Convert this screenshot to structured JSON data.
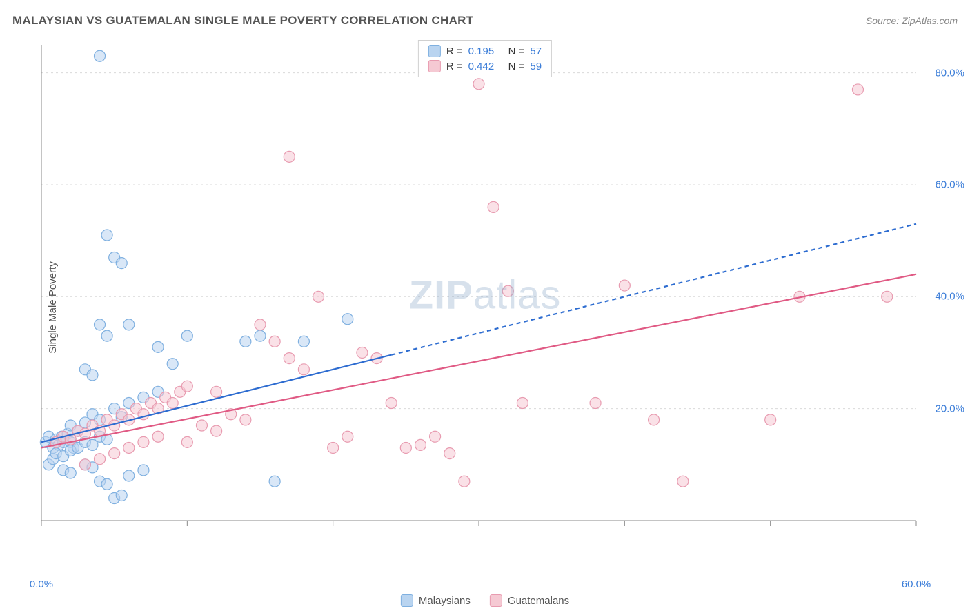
{
  "title": "MALAYSIAN VS GUATEMALAN SINGLE MALE POVERTY CORRELATION CHART",
  "source_label": "Source: ZipAtlas.com",
  "y_axis_label": "Single Male Poverty",
  "watermark": {
    "bold": "ZIP",
    "rest": "atlas"
  },
  "colors": {
    "series1_fill": "#b9d4f0",
    "series1_stroke": "#7fb0e0",
    "series2_fill": "#f5c9d3",
    "series2_stroke": "#e89bb0",
    "trend1": "#2d6cd0",
    "trend2": "#e05a84",
    "grid": "#d9d9d9",
    "axis": "#888888",
    "tick_text": "#3b7dd8",
    "background": "#ffffff"
  },
  "chart": {
    "type": "scatter",
    "xlim": [
      0,
      60
    ],
    "ylim": [
      0,
      85
    ],
    "x_ticks": [
      0,
      10,
      20,
      30,
      40,
      50,
      60
    ],
    "x_tick_labels": [
      "0.0%",
      "",
      "",
      "",
      "",
      "",
      "60.0%"
    ],
    "y_ticks": [
      20,
      40,
      60,
      80
    ],
    "y_tick_labels": [
      "20.0%",
      "40.0%",
      "60.0%",
      "80.0%"
    ],
    "marker_radius": 8,
    "marker_fill_opacity": 0.55,
    "line_width": 2.2,
    "grid_dash": "3,4",
    "series": [
      {
        "name": "Malaysians",
        "color_fill": "#b9d4f0",
        "color_stroke": "#7fb0e0",
        "R": "0.195",
        "N": "57",
        "trend": {
          "x1": 0,
          "y1": 14,
          "x2": 60,
          "y2": 53,
          "solid_until_x": 24,
          "color": "#2d6cd0"
        },
        "points": [
          [
            0.3,
            14
          ],
          [
            0.5,
            15
          ],
          [
            0.8,
            13
          ],
          [
            1,
            14.5
          ],
          [
            1.2,
            13.5
          ],
          [
            1.4,
            15
          ],
          [
            1.5,
            14
          ],
          [
            1.8,
            15.5
          ],
          [
            2,
            14
          ],
          [
            2.2,
            13
          ],
          [
            0.5,
            10
          ],
          [
            0.8,
            11
          ],
          [
            1,
            12
          ],
          [
            1.5,
            11.5
          ],
          [
            2,
            12.5
          ],
          [
            2.5,
            13
          ],
          [
            3,
            14
          ],
          [
            3.5,
            13.5
          ],
          [
            4,
            15
          ],
          [
            4.5,
            14.5
          ],
          [
            2,
            17
          ],
          [
            2.5,
            16
          ],
          [
            3,
            17.5
          ],
          [
            3.5,
            19
          ],
          [
            4,
            18
          ],
          [
            5,
            20
          ],
          [
            5.5,
            18.5
          ],
          [
            6,
            21
          ],
          [
            7,
            22
          ],
          [
            8,
            23
          ],
          [
            1.5,
            9
          ],
          [
            2,
            8.5
          ],
          [
            3,
            10
          ],
          [
            3.5,
            9.5
          ],
          [
            4,
            7
          ],
          [
            4.5,
            6.5
          ],
          [
            5,
            4
          ],
          [
            5.5,
            4.5
          ],
          [
            6,
            8
          ],
          [
            7,
            9
          ],
          [
            3,
            27
          ],
          [
            3.5,
            26
          ],
          [
            4,
            35
          ],
          [
            4.5,
            33
          ],
          [
            5,
            47
          ],
          [
            5.5,
            46
          ],
          [
            6,
            35
          ],
          [
            8,
            31
          ],
          [
            9,
            28
          ],
          [
            10,
            33
          ],
          [
            4,
            83
          ],
          [
            4.5,
            51
          ],
          [
            14,
            32
          ],
          [
            15,
            33
          ],
          [
            16,
            7
          ],
          [
            18,
            32
          ],
          [
            21,
            36
          ]
        ]
      },
      {
        "name": "Guatemalans",
        "color_fill": "#f5c9d3",
        "color_stroke": "#e89bb0",
        "R": "0.442",
        "N": "59",
        "trend": {
          "x1": 0,
          "y1": 13,
          "x2": 60,
          "y2": 44,
          "solid_until_x": 60,
          "color": "#e05a84"
        },
        "points": [
          [
            1,
            14
          ],
          [
            1.5,
            15
          ],
          [
            2,
            14.5
          ],
          [
            2.5,
            16
          ],
          [
            3,
            15.5
          ],
          [
            3.5,
            17
          ],
          [
            4,
            16
          ],
          [
            4.5,
            18
          ],
          [
            5,
            17
          ],
          [
            5.5,
            19
          ],
          [
            6,
            18
          ],
          [
            6.5,
            20
          ],
          [
            7,
            19
          ],
          [
            7.5,
            21
          ],
          [
            8,
            20
          ],
          [
            8.5,
            22
          ],
          [
            9,
            21
          ],
          [
            9.5,
            23
          ],
          [
            10,
            14
          ],
          [
            11,
            17
          ],
          [
            12,
            16
          ],
          [
            13,
            19
          ],
          [
            14,
            18
          ],
          [
            15,
            35
          ],
          [
            16,
            32
          ],
          [
            17,
            29
          ],
          [
            18,
            27
          ],
          [
            19,
            40
          ],
          [
            20,
            13
          ],
          [
            21,
            15
          ],
          [
            22,
            30
          ],
          [
            23,
            29
          ],
          [
            24,
            21
          ],
          [
            25,
            13
          ],
          [
            26,
            13.5
          ],
          [
            27,
            15
          ],
          [
            28,
            12
          ],
          [
            29,
            7
          ],
          [
            30,
            78
          ],
          [
            31,
            56
          ],
          [
            32,
            41
          ],
          [
            33,
            21
          ],
          [
            38,
            21
          ],
          [
            40,
            42
          ],
          [
            42,
            18
          ],
          [
            44,
            7
          ],
          [
            50,
            18
          ],
          [
            52,
            40
          ],
          [
            56,
            77
          ],
          [
            58,
            40
          ],
          [
            3,
            10
          ],
          [
            4,
            11
          ],
          [
            5,
            12
          ],
          [
            6,
            13
          ],
          [
            7,
            14
          ],
          [
            8,
            15
          ],
          [
            10,
            24
          ],
          [
            12,
            23
          ],
          [
            17,
            65
          ]
        ]
      }
    ]
  },
  "legend_top": [
    {
      "swatch": "#b9d4f0",
      "stroke": "#7fb0e0",
      "R_label": "R =",
      "R_val": "0.195",
      "N_label": "N =",
      "N_val": "57"
    },
    {
      "swatch": "#f5c9d3",
      "stroke": "#e89bb0",
      "R_label": "R =",
      "R_val": "0.442",
      "N_label": "N =",
      "N_val": "59"
    }
  ],
  "legend_bottom": [
    {
      "swatch": "#b9d4f0",
      "stroke": "#7fb0e0",
      "label": "Malaysians"
    },
    {
      "swatch": "#f5c9d3",
      "stroke": "#e89bb0",
      "label": "Guatemalans"
    }
  ]
}
